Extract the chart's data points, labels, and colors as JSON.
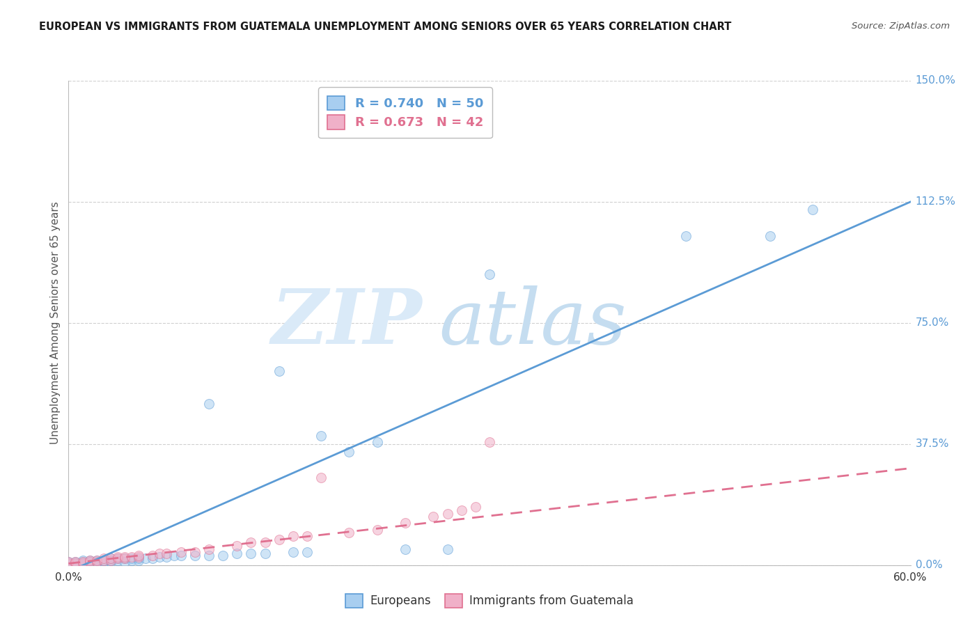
{
  "title": "EUROPEAN VS IMMIGRANTS FROM GUATEMALA UNEMPLOYMENT AMONG SENIORS OVER 65 YEARS CORRELATION CHART",
  "source": "Source: ZipAtlas.com",
  "xlabel_bottom_left": "0.0%",
  "xlabel_bottom_right": "60.0%",
  "ylabel_label": "Unemployment Among Seniors over 65 years",
  "xlim": [
    0.0,
    0.6
  ],
  "ylim": [
    0.0,
    1.5
  ],
  "yticks": [
    0.0,
    0.375,
    0.75,
    1.125,
    1.5
  ],
  "ytick_labels": [
    "0.0%",
    "37.5%",
    "75.0%",
    "112.5%",
    "150.0%"
  ],
  "legend1_r": "0.740",
  "legend1_n": "50",
  "legend2_r": "0.673",
  "legend2_n": "42",
  "blue_color": "#a8cef0",
  "pink_color": "#f0b0c8",
  "blue_line_color": "#5b9bd5",
  "pink_line_color": "#e07090",
  "watermark_zip": "ZIP",
  "watermark_atlas": "atlas",
  "watermark_color_zip": "#d0e4f5",
  "watermark_color_atlas": "#c8dff0",
  "blue_scatter_x": [
    0.0,
    0.0,
    0.005,
    0.005,
    0.01,
    0.01,
    0.01,
    0.015,
    0.015,
    0.02,
    0.02,
    0.02,
    0.025,
    0.025,
    0.03,
    0.03,
    0.03,
    0.035,
    0.035,
    0.04,
    0.04,
    0.045,
    0.045,
    0.05,
    0.05,
    0.055,
    0.06,
    0.065,
    0.07,
    0.075,
    0.08,
    0.09,
    0.1,
    0.1,
    0.11,
    0.12,
    0.13,
    0.14,
    0.15,
    0.16,
    0.17,
    0.18,
    0.2,
    0.22,
    0.24,
    0.27,
    0.3,
    0.44,
    0.5,
    0.53
  ],
  "blue_scatter_y": [
    0.005,
    0.01,
    0.005,
    0.01,
    0.005,
    0.01,
    0.015,
    0.01,
    0.015,
    0.005,
    0.01,
    0.015,
    0.01,
    0.015,
    0.01,
    0.015,
    0.02,
    0.015,
    0.02,
    0.01,
    0.02,
    0.015,
    0.02,
    0.015,
    0.02,
    0.02,
    0.02,
    0.025,
    0.025,
    0.03,
    0.03,
    0.03,
    0.03,
    0.5,
    0.03,
    0.035,
    0.035,
    0.035,
    0.6,
    0.04,
    0.04,
    0.4,
    0.35,
    0.38,
    0.05,
    0.05,
    0.9,
    1.02,
    1.02,
    1.1
  ],
  "pink_scatter_x": [
    0.0,
    0.0,
    0.005,
    0.005,
    0.01,
    0.01,
    0.015,
    0.015,
    0.02,
    0.02,
    0.025,
    0.025,
    0.03,
    0.03,
    0.035,
    0.035,
    0.04,
    0.04,
    0.045,
    0.05,
    0.05,
    0.06,
    0.065,
    0.07,
    0.08,
    0.09,
    0.1,
    0.12,
    0.13,
    0.14,
    0.15,
    0.16,
    0.17,
    0.18,
    0.2,
    0.22,
    0.24,
    0.26,
    0.27,
    0.28,
    0.29,
    0.3
  ],
  "pink_scatter_y": [
    0.005,
    0.01,
    0.005,
    0.01,
    0.005,
    0.01,
    0.01,
    0.015,
    0.01,
    0.015,
    0.015,
    0.02,
    0.015,
    0.02,
    0.02,
    0.025,
    0.02,
    0.025,
    0.025,
    0.025,
    0.03,
    0.03,
    0.035,
    0.035,
    0.04,
    0.04,
    0.05,
    0.06,
    0.07,
    0.07,
    0.08,
    0.09,
    0.09,
    0.27,
    0.1,
    0.11,
    0.13,
    0.15,
    0.16,
    0.17,
    0.18,
    0.38
  ],
  "blue_line_x0": 0.0,
  "blue_line_y0": -0.02,
  "blue_line_x1": 0.6,
  "blue_line_y1": 1.125,
  "pink_line_x0": 0.0,
  "pink_line_y0": 0.005,
  "pink_line_x1": 0.6,
  "pink_line_y1": 0.3
}
